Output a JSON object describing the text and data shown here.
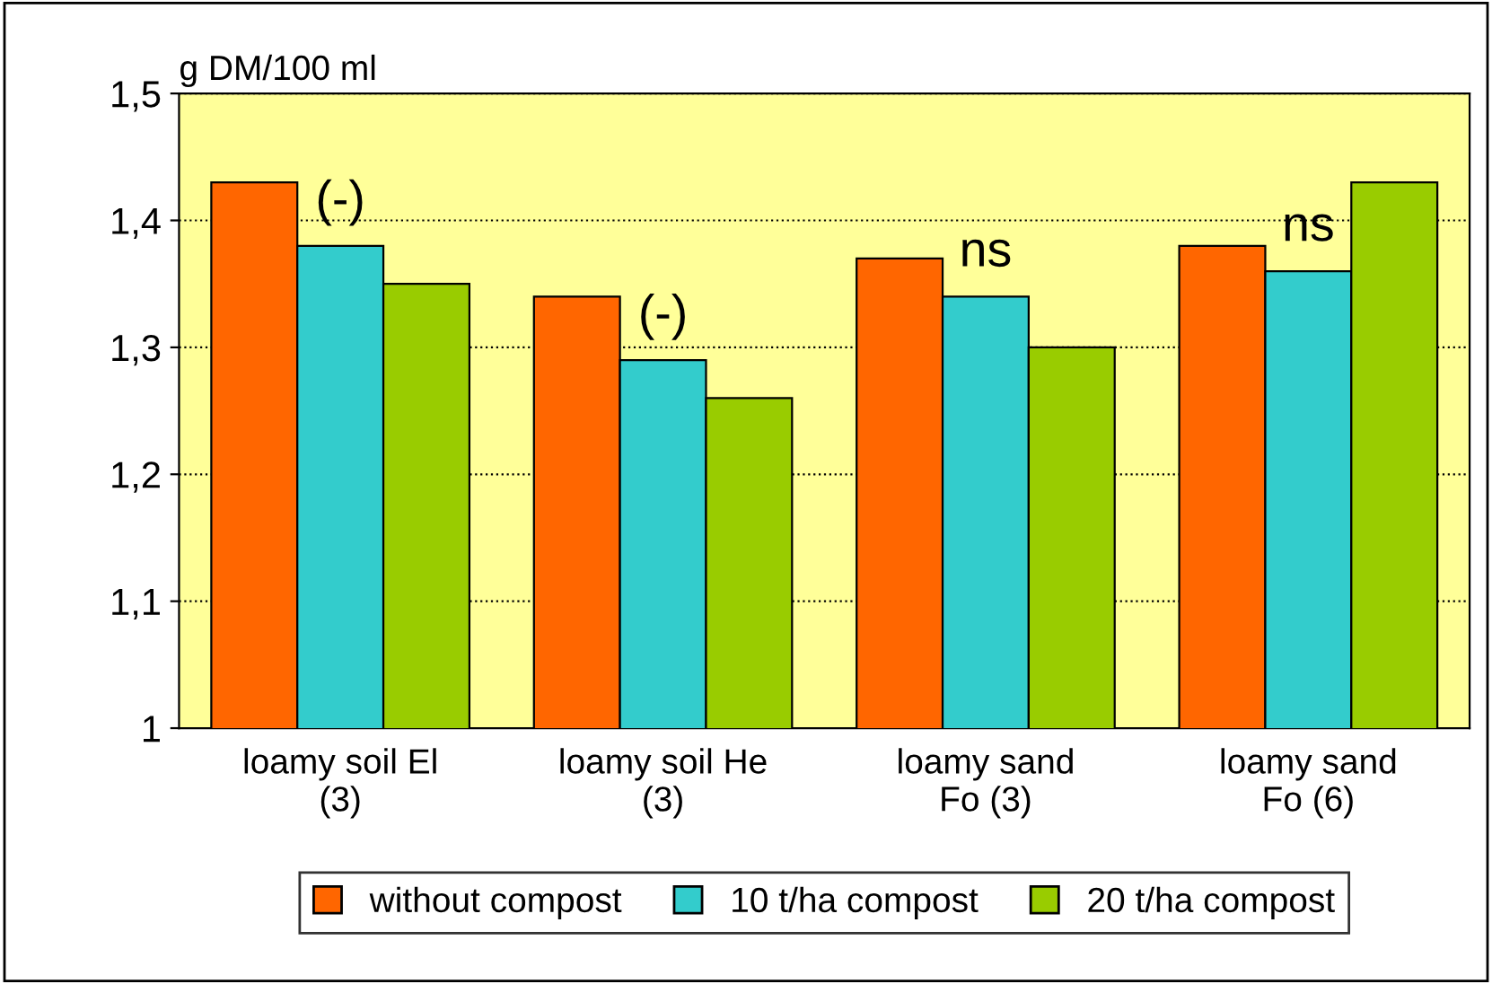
{
  "chart_data": {
    "type": "bar",
    "ylabel": "g DM/100 ml",
    "categories": [
      "loamy soil El\n(3)",
      "loamy soil He\n(3)",
      "loamy sand\nFo (3)",
      "loamy sand\nFo (6)"
    ],
    "series": [
      {
        "name": "without compost",
        "color": "#ff6600",
        "values": [
          1.43,
          1.34,
          1.37,
          1.38
        ]
      },
      {
        "name": "10 t/ha compost",
        "color": "#33cccc",
        "values": [
          1.38,
          1.29,
          1.34,
          1.36
        ]
      },
      {
        "name": "20 t/ha compost",
        "color": "#99cc00",
        "values": [
          1.35,
          1.26,
          1.3,
          1.43
        ]
      }
    ],
    "ylim": [
      1,
      1.5
    ],
    "yticks": [
      1,
      {
        "value": 1.1,
        "label": "1,1"
      },
      {
        "value": 1.2,
        "label": "1,2"
      },
      {
        "value": 1.3,
        "label": "1,3"
      },
      {
        "value": 1.4,
        "label": "1,4"
      },
      {
        "value": 1.5,
        "label": "1,5"
      }
    ],
    "grid": "y",
    "legend": "bottom",
    "annotations": [
      "(-)",
      "(-)",
      "ns",
      "ns"
    ]
  }
}
